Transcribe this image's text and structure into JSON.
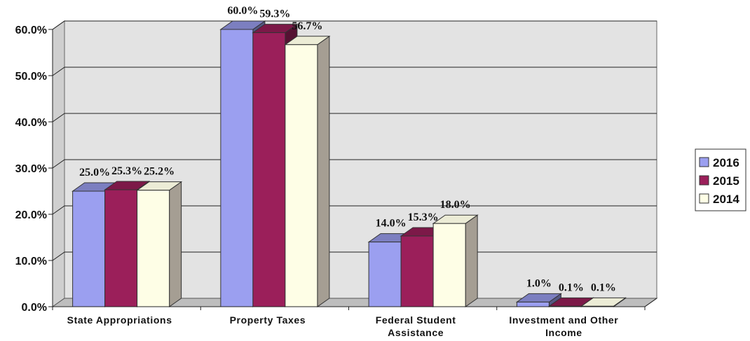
{
  "chart_data": {
    "type": "bar",
    "categories": [
      [
        "State Appropriations"
      ],
      [
        "Property Taxes"
      ],
      [
        "Federal Student",
        "Assistance"
      ],
      [
        "Investment and Other",
        "Income"
      ]
    ],
    "series": [
      {
        "name": "2016",
        "values": [
          25.0,
          60.0,
          14.0,
          1.0
        ],
        "labels": [
          "25.0%",
          "60.0%",
          "14.0%",
          "1.0%"
        ],
        "color": "#9b9ff0"
      },
      {
        "name": "2015",
        "values": [
          25.3,
          59.3,
          15.3,
          0.1
        ],
        "labels": [
          "25.3%",
          "59.3%",
          "15.3%",
          "0.1%"
        ],
        "color": "#9b1f5a"
      },
      {
        "name": "2014",
        "values": [
          25.2,
          56.7,
          18.0,
          0.1
        ],
        "labels": [
          "25.2%",
          "56.7%",
          "18.0%",
          "0.1%"
        ],
        "color": "#fefee6"
      }
    ],
    "y_ticks": [
      "0.0%",
      "10.0%",
      "20.0%",
      "30.0%",
      "40.0%",
      "50.0%",
      "60.0%"
    ],
    "ylim": [
      0,
      60
    ],
    "grid": true,
    "legend_position": "right",
    "style": "3d-clustered-bar",
    "wall_color": "#e3e3e3",
    "floor_color": "#bdbdbd"
  }
}
